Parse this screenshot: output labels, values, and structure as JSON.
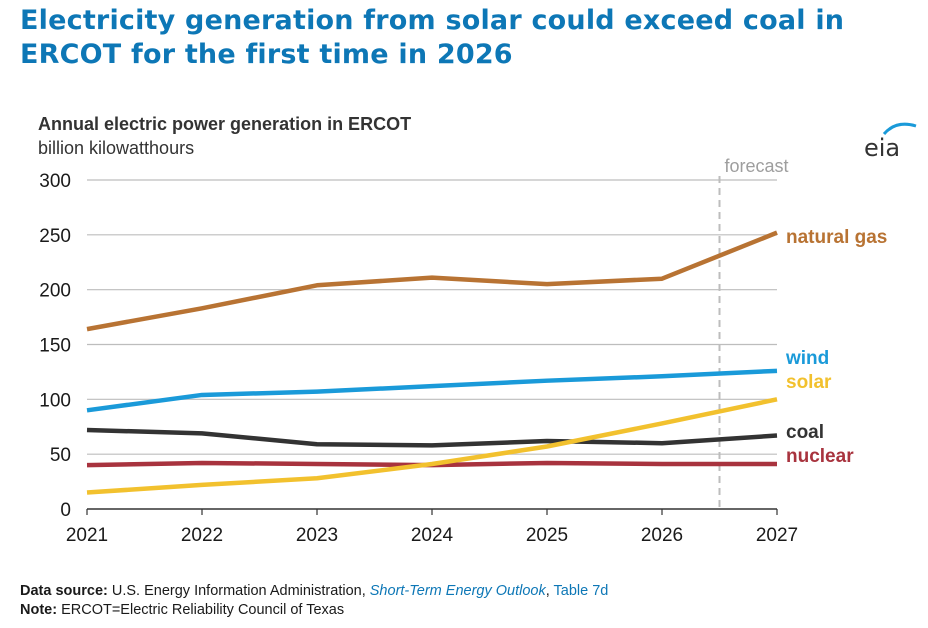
{
  "headline": "Electricity generation from solar could exceed coal in ERCOT for the first time in 2026",
  "logo_text": "eia",
  "chart_data": {
    "type": "line",
    "title": "Annual electric power generation in ERCOT",
    "subtitle": "billion kilowatthours",
    "x": [
      2021,
      2022,
      2023,
      2024,
      2025,
      2026,
      2027
    ],
    "xlabels": [
      "2021",
      "2022",
      "2023",
      "2024",
      "2025",
      "2026",
      "2027"
    ],
    "ylim": [
      0,
      300
    ],
    "yticks": [
      "0",
      "50",
      "100",
      "150",
      "200",
      "250",
      "300"
    ],
    "grid": true,
    "forecast_label": "forecast",
    "forecast_x": 2026.5,
    "series": [
      {
        "name": "natural gas",
        "color": "#b87333",
        "values": [
          164,
          183,
          204,
          211,
          205,
          210,
          252
        ]
      },
      {
        "name": "wind",
        "color": "#1a9ad9",
        "values": [
          90,
          104,
          107,
          112,
          117,
          121,
          126
        ]
      },
      {
        "name": "solar",
        "color": "#f2c12e",
        "values": [
          15,
          22,
          28,
          41,
          57,
          78,
          100
        ]
      },
      {
        "name": "coal",
        "color": "#333333",
        "values": [
          72,
          69,
          59,
          58,
          62,
          60,
          67
        ]
      },
      {
        "name": "nuclear",
        "color": "#a8333e",
        "values": [
          40,
          42,
          41,
          40,
          42,
          41,
          41
        ]
      }
    ]
  },
  "footer": {
    "source_label": "Data source:",
    "source_text": " U.S. Energy Information Administration, ",
    "source_link": "Short-Term Energy Outlook",
    "source_sep": ", ",
    "source_table": "Table 7d",
    "note_label": "Note:",
    "note_text": " ERCOT=Electric Reliability Council of Texas"
  }
}
